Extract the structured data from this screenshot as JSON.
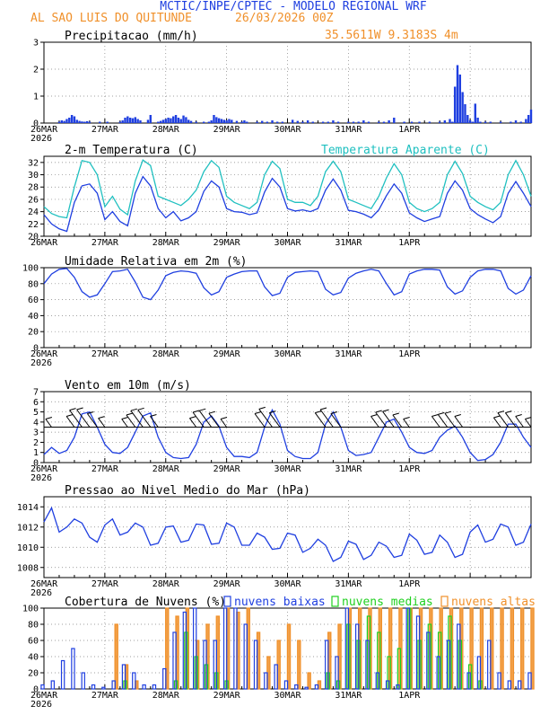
{
  "header": {
    "model_title": "MCTIC/INPE/CPTEC - MODELO REGIONAL WRF",
    "location": "AL SAO LUIS DO QUITUNDE",
    "run": "26/03/2026 00Z",
    "coords": "35.5611W 9.3183S 4m"
  },
  "colors": {
    "blue": "#1f3fe0",
    "orange": "#f0902a",
    "cyan": "#20c0c0",
    "green": "#20d020",
    "grid": "#808080"
  },
  "x_axis": {
    "day_labels": [
      "26MAR",
      "27MAR",
      "28MAR",
      "29MAR",
      "30MAR",
      "31MAR",
      "1APR"
    ],
    "year": "2026"
  },
  "chart_data": [
    {
      "id": "precip",
      "type": "bar",
      "title": "Precipitacao (mm/h)",
      "ylim": [
        0,
        3
      ],
      "yticks": [
        "0",
        "1",
        "2",
        "3"
      ],
      "x_unit": "hours since 26MAR 00Z",
      "x": [
        6,
        7,
        8,
        9,
        10,
        11,
        12,
        13,
        14,
        15,
        16,
        17,
        18,
        22,
        25,
        30,
        31,
        32,
        33,
        34,
        35,
        36,
        37,
        38,
        41,
        42,
        45,
        46,
        47,
        48,
        49,
        50,
        51,
        52,
        53,
        54,
        55,
        56,
        57,
        58,
        60,
        63,
        65,
        66,
        67,
        68,
        69,
        70,
        71,
        72,
        73,
        74,
        76,
        78,
        79,
        80,
        84,
        86,
        88,
        90,
        92,
        94,
        98,
        100,
        102,
        104,
        106,
        110,
        112,
        114,
        116,
        120,
        122,
        124,
        126,
        128,
        132,
        134,
        136,
        138,
        142,
        145,
        148,
        152,
        156,
        158,
        160,
        161,
        162,
        163,
        164,
        165,
        166,
        167,
        168,
        169,
        170,
        171,
        172,
        174,
        176,
        180,
        184,
        186,
        188,
        190,
        191,
        192
      ],
      "values": [
        0.05,
        0.1,
        0.08,
        0.15,
        0.2,
        0.3,
        0.25,
        0.12,
        0.08,
        0.06,
        0.05,
        0.07,
        0.05,
        0.05,
        0.05,
        0.05,
        0.1,
        0.2,
        0.25,
        0.2,
        0.18,
        0.22,
        0.15,
        0.1,
        0.12,
        0.3,
        0.05,
        0.08,
        0.12,
        0.15,
        0.2,
        0.18,
        0.25,
        0.3,
        0.2,
        0.15,
        0.28,
        0.22,
        0.12,
        0.08,
        0.05,
        0.05,
        0.05,
        0.1,
        0.3,
        0.22,
        0.18,
        0.15,
        0.12,
        0.1,
        0.15,
        0.12,
        0.08,
        0.05,
        0.1,
        0.05,
        0.05,
        0.08,
        0.05,
        0.1,
        0.05,
        0.05,
        0.12,
        0.08,
        0.05,
        0.1,
        0.05,
        0.05,
        0.05,
        0.1,
        0.05,
        0.05,
        0.05,
        0.05,
        0.1,
        0.05,
        0.05,
        0.05,
        0.1,
        0.2,
        0.05,
        0.05,
        0.05,
        0.05,
        0.05,
        0.1,
        0.15,
        0.05,
        1.35,
        2.15,
        1.8,
        1.15,
        0.7,
        0.3,
        0.1,
        0.05,
        0.72,
        0.2,
        0.05,
        0.05,
        0.05,
        0.05,
        0.05,
        0.1,
        0.05,
        0.15,
        0.3,
        0.5
      ]
    },
    {
      "id": "temperature",
      "type": "line",
      "title": "2-m Temperatura (C)",
      "series2_title": "Temperatura Aparente (C)",
      "ylim": [
        20,
        33
      ],
      "yticks": [
        "20",
        "22",
        "24",
        "26",
        "28",
        "30",
        "32"
      ],
      "x_unit": "hours since 26MAR 00Z",
      "series": [
        {
          "name": "2-m Temperatura (C)",
          "color": "blue",
          "x": [
            0,
            3,
            6,
            9,
            12,
            15,
            18,
            21,
            24,
            27,
            30,
            33,
            36,
            39,
            42,
            45,
            48,
            51,
            54,
            57,
            60,
            63,
            66,
            69,
            72,
            75,
            78,
            81,
            84,
            87,
            90,
            93,
            96,
            99,
            102,
            105,
            108,
            111,
            114,
            117,
            120,
            123,
            126,
            129,
            132,
            135,
            138,
            141,
            144,
            147,
            150,
            153,
            156,
            159,
            162,
            165,
            168,
            171,
            174,
            177,
            180,
            183,
            186,
            189,
            192
          ],
          "values": [
            23.5,
            22.0,
            21.2,
            20.8,
            25.5,
            28.2,
            28.5,
            27.0,
            22.7,
            24.0,
            22.4,
            21.7,
            27.0,
            29.7,
            28.2,
            24.5,
            23.0,
            24.0,
            22.5,
            23.0,
            24.0,
            27.3,
            29.0,
            28.0,
            24.5,
            24.0,
            23.9,
            23.5,
            23.8,
            27.2,
            29.4,
            28.0,
            24.5,
            24.1,
            24.3,
            24.0,
            24.5,
            27.5,
            29.3,
            27.5,
            24.2,
            24.0,
            23.6,
            23.0,
            24.3,
            26.6,
            28.5,
            27.0,
            23.8,
            23.0,
            22.4,
            22.8,
            23.2,
            27.0,
            29.0,
            27.5,
            24.5,
            23.5,
            22.8,
            22.2,
            23.2,
            27.0,
            28.9,
            27.0,
            24.8
          ]
        },
        {
          "name": "Temperatura Aparente (C)",
          "color": "cyan",
          "x": [
            0,
            3,
            6,
            9,
            12,
            15,
            18,
            21,
            24,
            27,
            30,
            33,
            36,
            39,
            42,
            45,
            48,
            51,
            54,
            57,
            60,
            63,
            66,
            69,
            72,
            75,
            78,
            81,
            84,
            87,
            90,
            93,
            96,
            99,
            102,
            105,
            108,
            111,
            114,
            117,
            120,
            123,
            126,
            129,
            132,
            135,
            138,
            141,
            144,
            147,
            150,
            153,
            156,
            159,
            162,
            165,
            168,
            171,
            174,
            177,
            180,
            183,
            186,
            189,
            192
          ],
          "values": [
            24.8,
            23.7,
            23.2,
            23.0,
            28.0,
            32.3,
            32.0,
            30.0,
            24.8,
            26.5,
            24.4,
            23.5,
            29.0,
            32.4,
            31.5,
            26.5,
            26.0,
            25.5,
            25.0,
            26.0,
            27.5,
            30.5,
            32.3,
            31.2,
            26.5,
            25.5,
            25.0,
            24.5,
            25.5,
            30.0,
            32.2,
            31.0,
            26.0,
            25.5,
            25.5,
            25.0,
            26.5,
            30.5,
            32.2,
            30.5,
            26.0,
            25.5,
            25.0,
            24.5,
            26.5,
            29.5,
            31.8,
            30.0,
            25.5,
            24.5,
            24.0,
            24.5,
            25.5,
            30.0,
            32.2,
            30.2,
            26.5,
            25.5,
            24.8,
            24.3,
            25.5,
            30.0,
            32.3,
            30.0,
            26.5
          ]
        }
      ]
    },
    {
      "id": "humidity",
      "type": "line",
      "title": "Umidade Relativa em 2m (%)",
      "ylim": [
        0,
        100
      ],
      "yticks": [
        "0",
        "20",
        "40",
        "60",
        "80",
        "100"
      ],
      "x_unit": "hours since 26MAR 00Z",
      "x": [
        0,
        3,
        6,
        9,
        12,
        15,
        18,
        21,
        24,
        27,
        30,
        33,
        36,
        39,
        42,
        45,
        48,
        51,
        54,
        57,
        60,
        63,
        66,
        69,
        72,
        75,
        78,
        81,
        84,
        87,
        90,
        93,
        96,
        99,
        102,
        105,
        108,
        111,
        114,
        117,
        120,
        123,
        126,
        129,
        132,
        135,
        138,
        141,
        144,
        147,
        150,
        153,
        156,
        159,
        162,
        165,
        168,
        171,
        174,
        177,
        180,
        183,
        186,
        189,
        192
      ],
      "values": [
        80,
        92,
        98,
        99,
        88,
        70,
        63,
        66,
        80,
        95,
        96,
        98,
        82,
        63,
        60,
        72,
        90,
        94,
        96,
        95,
        93,
        75,
        66,
        70,
        88,
        92,
        95,
        96,
        96,
        76,
        65,
        68,
        88,
        94,
        95,
        96,
        95,
        73,
        66,
        69,
        87,
        93,
        96,
        98,
        96,
        80,
        66,
        70,
        92,
        96,
        98,
        98,
        97,
        76,
        67,
        71,
        88,
        96,
        98,
        98,
        96,
        74,
        67,
        72,
        90
      ]
    },
    {
      "id": "wind",
      "type": "line",
      "title": "Vento em 10m (m/s)",
      "ylim": [
        0,
        7
      ],
      "yticks": [
        "0",
        "1",
        "2",
        "3",
        "4",
        "5",
        "6",
        "7"
      ],
      "x_unit": "hours since 26MAR 00Z",
      "x": [
        0,
        3,
        6,
        9,
        12,
        15,
        18,
        21,
        24,
        27,
        30,
        33,
        36,
        39,
        42,
        45,
        48,
        51,
        54,
        57,
        60,
        63,
        66,
        69,
        72,
        75,
        78,
        81,
        84,
        87,
        90,
        93,
        96,
        99,
        102,
        105,
        108,
        111,
        114,
        117,
        120,
        123,
        126,
        129,
        132,
        135,
        138,
        141,
        144,
        147,
        150,
        153,
        156,
        159,
        162,
        165,
        168,
        171,
        174,
        177,
        180,
        183,
        186,
        189,
        192
      ],
      "values": [
        0.8,
        1.5,
        0.9,
        1.2,
        2.5,
        4.8,
        5.0,
        3.5,
        1.8,
        1.0,
        0.9,
        1.5,
        3.0,
        4.6,
        4.9,
        2.5,
        1.0,
        0.5,
        0.4,
        0.5,
        1.8,
        4.0,
        4.6,
        3.6,
        1.5,
        0.6,
        0.6,
        0.5,
        1.0,
        3.5,
        5.2,
        3.8,
        1.2,
        0.6,
        0.4,
        0.4,
        1.0,
        3.8,
        5.0,
        3.5,
        1.2,
        0.7,
        0.8,
        1.0,
        2.5,
        4.0,
        4.3,
        3.0,
        1.5,
        1.0,
        0.9,
        1.2,
        2.5,
        3.2,
        3.6,
        2.5,
        1.0,
        0.2,
        0.3,
        0.8,
        2.0,
        3.8,
        3.8,
        2.5,
        1.5
      ],
      "barbs_note": "wind barbs drawn along the 3.5 m/s line"
    },
    {
      "id": "pressure",
      "type": "line",
      "title": "Pressao ao Nivel Medio do Mar (hPa)",
      "ylim": [
        1007,
        1015
      ],
      "yticks": [
        "1008",
        "1010",
        "1012",
        "1014"
      ],
      "x_unit": "hours since 26MAR 00Z",
      "x": [
        0,
        3,
        6,
        9,
        12,
        15,
        18,
        21,
        24,
        27,
        30,
        33,
        36,
        39,
        42,
        45,
        48,
        51,
        54,
        57,
        60,
        63,
        66,
        69,
        72,
        75,
        78,
        81,
        84,
        87,
        90,
        93,
        96,
        99,
        102,
        105,
        108,
        111,
        114,
        117,
        120,
        123,
        126,
        129,
        132,
        135,
        138,
        141,
        144,
        147,
        150,
        153,
        156,
        159,
        162,
        165,
        168,
        171,
        174,
        177,
        180,
        183,
        186,
        189,
        192
      ],
      "values": [
        1012.5,
        1013.9,
        1011.5,
        1012.0,
        1012.8,
        1012.4,
        1011.0,
        1010.5,
        1012.2,
        1012.8,
        1011.2,
        1011.5,
        1012.4,
        1012.0,
        1010.2,
        1010.4,
        1012.0,
        1012.1,
        1010.5,
        1010.7,
        1012.3,
        1012.2,
        1010.3,
        1010.4,
        1012.4,
        1012.0,
        1010.2,
        1010.2,
        1011.4,
        1011.0,
        1009.8,
        1009.9,
        1011.4,
        1011.2,
        1009.5,
        1009.9,
        1010.8,
        1010.2,
        1008.6,
        1009.0,
        1010.6,
        1010.3,
        1008.8,
        1009.2,
        1010.5,
        1010.1,
        1009.0,
        1009.2,
        1011.3,
        1010.7,
        1009.3,
        1009.5,
        1011.2,
        1010.5,
        1009.0,
        1009.3,
        1011.5,
        1012.2,
        1010.5,
        1010.8,
        1012.3,
        1012.0,
        1010.2,
        1010.5,
        1012.3
      ]
    },
    {
      "id": "clouds",
      "type": "bar",
      "title": "Cobertura de Nuvens (%)",
      "ylim": [
        0,
        100
      ],
      "yticks": [
        "0",
        "20",
        "40",
        "60",
        "80",
        "100"
      ],
      "x_unit": "hours since 26MAR 00Z",
      "legend": [
        "nuvens baixas",
        "nuvens medias",
        "nuvens altas"
      ],
      "x": [
        0,
        4,
        8,
        12,
        16,
        20,
        24,
        28,
        32,
        36,
        40,
        44,
        48,
        52,
        56,
        60,
        64,
        68,
        72,
        76,
        80,
        84,
        88,
        92,
        96,
        100,
        104,
        108,
        112,
        116,
        120,
        124,
        128,
        132,
        136,
        140,
        144,
        148,
        152,
        156,
        160,
        164,
        168,
        172,
        176,
        180,
        184,
        188,
        192
      ],
      "series": [
        {
          "name": "nuvens baixas",
          "color": "blue",
          "values": [
            5,
            10,
            35,
            50,
            20,
            5,
            2,
            10,
            30,
            20,
            5,
            5,
            25,
            70,
            95,
            100,
            60,
            60,
            100,
            100,
            80,
            60,
            20,
            30,
            10,
            5,
            2,
            5,
            60,
            40,
            100,
            80,
            60,
            20,
            10,
            5,
            100,
            90,
            70,
            40,
            60,
            80,
            20,
            40,
            60,
            20,
            10,
            10,
            20
          ]
        },
        {
          "name": "nuvens medias",
          "color": "green",
          "values": [
            0,
            0,
            0,
            0,
            0,
            0,
            0,
            0,
            10,
            0,
            0,
            0,
            0,
            10,
            70,
            40,
            30,
            20,
            10,
            0,
            0,
            0,
            0,
            0,
            0,
            0,
            0,
            0,
            20,
            10,
            80,
            60,
            90,
            70,
            40,
            50,
            100,
            60,
            80,
            70,
            90,
            60,
            30,
            10,
            0,
            0,
            0,
            0,
            0
          ]
        },
        {
          "name": "nuvens altas",
          "color": "orange",
          "values": [
            0,
            0,
            0,
            0,
            0,
            0,
            0,
            80,
            30,
            10,
            0,
            0,
            100,
            90,
            100,
            60,
            80,
            90,
            100,
            95,
            100,
            70,
            40,
            60,
            80,
            60,
            20,
            10,
            70,
            80,
            100,
            100,
            100,
            100,
            100,
            100,
            100,
            100,
            100,
            100,
            100,
            100,
            100,
            100,
            100,
            100,
            100,
            100,
            100
          ]
        }
      ]
    }
  ]
}
